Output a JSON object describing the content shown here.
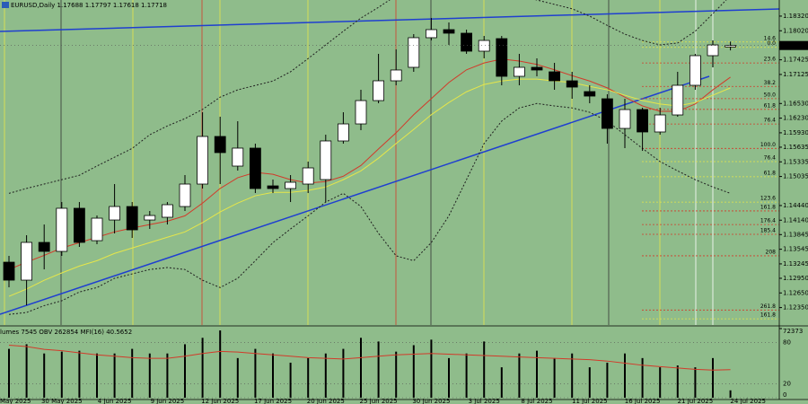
{
  "chart_data": [
    {
      "type": "candlestick",
      "title": "EURUSD,Daily  1.17688 1.17797 1.17618 1.17718",
      "categories": [
        "May 2025",
        null,
        null,
        "30 May 2025",
        null,
        null,
        "4 Jun 2025",
        null,
        null,
        "9 Jun 2025",
        null,
        null,
        "12 Jun 2025",
        null,
        null,
        "17 Jun 2025",
        null,
        null,
        "20 Jun 2025",
        null,
        null,
        "25 Jun 2025",
        null,
        null,
        "30 Jun 2025",
        null,
        null,
        "3 Jul 2025",
        null,
        null,
        "8 Jul 2025",
        null,
        null,
        "11 Jul 2025",
        null,
        null,
        "16 Jul 2025",
        null,
        null,
        "21 Jul 2025",
        null,
        null,
        "24 Jul 2025"
      ],
      "open": [
        1.1328,
        1.12912,
        1.13685,
        1.13501,
        1.14384,
        1.13721,
        1.14144,
        1.1442,
        1.14144,
        1.142,
        1.1442,
        1.1488,
        1.15855,
        1.15248,
        1.15616,
        1.14843,
        1.14788,
        1.1488,
        1.14972,
        1.15763,
        1.16112,
        1.1659,
        1.16995,
        1.17271,
        1.17878,
        1.18043,
        1.1797,
        1.17602,
        1.17859,
        1.17087,
        1.17271,
        1.17179,
        1.16995,
        1.16774,
        1.16627,
        1.1602,
        1.16406,
        1.15947,
        1.16296,
        1.16903,
        1.1751,
        1.17688,
        null
      ],
      "high": [
        1.13409,
        1.13832,
        1.14052,
        1.14512,
        1.14512,
        1.14236,
        1.1488,
        1.14512,
        1.14328,
        1.14512,
        1.15064,
        1.16351,
        1.16259,
        1.16167,
        1.15708,
        1.14972,
        1.15064,
        1.1534,
        1.15891,
        1.16351,
        1.16811,
        1.17547,
        1.17639,
        1.17951,
        1.18282,
        1.1819,
        1.18043,
        1.17914,
        1.17914,
        1.17547,
        1.17455,
        1.17363,
        1.17179,
        1.16903,
        1.16719,
        1.16627,
        1.16443,
        1.16443,
        1.17179,
        1.17547,
        1.17822,
        1.17797,
        null
      ],
      "low": [
        1.12765,
        1.12397,
        1.13133,
        1.13409,
        1.13593,
        1.13648,
        1.13869,
        1.13777,
        1.13961,
        1.14052,
        1.14328,
        1.14788,
        1.1488,
        1.15156,
        1.14696,
        1.14696,
        1.14512,
        1.14696,
        1.14512,
        1.15708,
        1.15983,
        1.16535,
        1.16903,
        1.17179,
        1.17822,
        1.1773,
        1.17547,
        1.17455,
        1.16903,
        1.16903,
        1.17087,
        1.16811,
        1.16627,
        1.16535,
        1.15708,
        1.15616,
        1.1556,
        1.15891,
        1.16259,
        1.16811,
        1.17271,
        1.17618,
        null
      ],
      "close": [
        1.12912,
        1.13685,
        1.13501,
        1.14384,
        1.13685,
        1.14181,
        1.1442,
        1.13942,
        1.14236,
        1.14457,
        1.1488,
        1.15855,
        1.15524,
        1.15616,
        1.14788,
        1.14788,
        1.14917,
        1.15211,
        1.15763,
        1.16112,
        1.1659,
        1.16995,
        1.17216,
        1.17878,
        1.18043,
        1.1797,
        1.17602,
        1.17822,
        1.17087,
        1.17271,
        1.17216,
        1.16995,
        1.16866,
        1.16682,
        1.1602,
        1.16406,
        1.15947,
        1.16296,
        1.16903,
        1.1751,
        1.1773,
        1.17718,
        null
      ],
      "bull_color": "#ffffff",
      "bear_color": "#000000",
      "series": [
        {
          "color": "#d23a2a",
          "dash": "none",
          "values": [
            1.1313,
            1.1328,
            1.1342,
            1.1357,
            1.1368,
            1.1379,
            1.139,
            1.1398,
            1.1405,
            1.1412,
            1.1423,
            1.1449,
            1.1479,
            1.1501,
            1.1512,
            1.1508,
            1.1497,
            1.149,
            1.1493,
            1.1504,
            1.1526,
            1.156,
            1.1593,
            1.163,
            1.1663,
            1.1696,
            1.1722,
            1.1736,
            1.1744,
            1.174,
            1.1733,
            1.1722,
            1.171,
            1.1699,
            1.1685,
            1.1666,
            1.1648,
            1.1637,
            1.1637,
            1.1652,
            1.1681,
            1.1707,
            null
          ]
        },
        {
          "color": "#e6e64a",
          "dash": "none",
          "values": [
            1.1258,
            1.1273,
            1.1291,
            1.1306,
            1.132,
            1.1331,
            1.1346,
            1.1357,
            1.1368,
            1.1379,
            1.139,
            1.1409,
            1.1431,
            1.1449,
            1.1464,
            1.1471,
            1.1471,
            1.1475,
            1.1482,
            1.1497,
            1.1515,
            1.1541,
            1.1571,
            1.16,
            1.163,
            1.1655,
            1.1677,
            1.1692,
            1.1699,
            1.1703,
            1.1703,
            1.1699,
            1.1696,
            1.1688,
            1.1681,
            1.167,
            1.1659,
            1.1652,
            1.1648,
            1.1655,
            1.167,
            1.1685,
            null
          ]
        },
        {
          "color": "#1f1f1f",
          "dash": "2,2",
          "values": [
            1.1469,
            1.1479,
            1.1488,
            1.1497,
            1.1506,
            1.1525,
            1.1543,
            1.1561,
            1.1589,
            1.1607,
            1.1622,
            1.1641,
            1.1666,
            1.1681,
            1.169,
            1.1699,
            1.1718,
            1.1745,
            1.1773,
            1.1801,
            1.1828,
            1.185,
            1.1874,
            1.1883,
            1.1893,
            1.1898,
            1.1893,
            1.1887,
            1.188,
            1.1874,
            1.1865,
            1.1856,
            1.1847,
            1.1832,
            1.1813,
            1.1795,
            1.1782,
            1.1773,
            1.1777,
            1.1801,
            1.1837,
            1.1874,
            null
          ]
        },
        {
          "color": "#1f1f1f",
          "dash": "2,2",
          "values": [
            1.1221,
            1.1225,
            1.1239,
            1.1249,
            1.1267,
            1.1276,
            1.1295,
            1.1304,
            1.1313,
            1.1317,
            1.1313,
            1.1291,
            1.1276,
            1.1295,
            1.1331,
            1.1368,
            1.1396,
            1.1423,
            1.1451,
            1.1469,
            1.1442,
            1.1387,
            1.1341,
            1.1331,
            1.1368,
            1.1423,
            1.1497,
            1.1571,
            1.1617,
            1.1644,
            1.1653,
            1.1648,
            1.1644,
            1.1635,
            1.1617,
            1.1589,
            1.1561,
            1.1534,
            1.1515,
            1.1497,
            1.1482,
            1.1469,
            null
          ]
        }
      ],
      "ylim": [
        1.1203,
        1.1865
      ],
      "yticks": [
        {
          "value": 1.1832,
          "label": "1.18320"
        },
        {
          "value": 1.1802,
          "label": "1.18020"
        },
        {
          "value": 1.17425,
          "label": "1.17425"
        },
        {
          "value": 1.17125,
          "label": "1.17125"
        },
        {
          "value": 1.1653,
          "label": "1.16530"
        },
        {
          "value": 1.1623,
          "label": "1.16230"
        },
        {
          "value": 1.1593,
          "label": "1.15930"
        },
        {
          "value": 1.15635,
          "label": "1.15635"
        },
        {
          "value": 1.15335,
          "label": "1.15335"
        },
        {
          "value": 1.15035,
          "label": "1.15035"
        },
        {
          "value": 1.1444,
          "label": "1.14440"
        },
        {
          "value": 1.1414,
          "label": "1.14140"
        },
        {
          "value": 1.13845,
          "label": "1.13845"
        },
        {
          "value": 1.13545,
          "label": "1.13545"
        },
        {
          "value": 1.13245,
          "label": "1.13245"
        },
        {
          "value": 1.1295,
          "label": "1.12950"
        },
        {
          "value": 1.1265,
          "label": "1.12650"
        },
        {
          "value": 1.1235,
          "label": "1.12350"
        }
      ],
      "last_price": {
        "value": 1.17718,
        "label": "1.17718"
      },
      "levels": [
        {
          "label": "14.6",
          "value": 1.1779,
          "color": "#e6e64a"
        },
        {
          "label": "0.0",
          "value": 1.1768,
          "color": "#e6e64a"
        },
        {
          "label": "23.6",
          "value": 1.1736,
          "color": "#d23a2a"
        },
        {
          "label": "38.2",
          "value": 1.1688,
          "color": "#d23a2a"
        },
        {
          "label": "50.0",
          "value": 1.1663,
          "color": "#d23a2a"
        },
        {
          "label": "61.8",
          "value": 1.1641,
          "color": "#d23a2a"
        },
        {
          "label": "76.4",
          "value": 1.1611,
          "color": "#d23a2a"
        },
        {
          "label": "100.0",
          "value": 1.1561,
          "color": "#d23a2a"
        },
        {
          "label": "76.4",
          "value": 1.1534,
          "color": "#e6e64a"
        },
        {
          "label": "61.8",
          "value": 1.1503,
          "color": "#e6e64a"
        },
        {
          "label": "123.6",
          "value": 1.1451,
          "color": "#e6e64a"
        },
        {
          "label": "161.8",
          "value": 1.1433,
          "color": "#d23a2a"
        },
        {
          "label": "176.4",
          "value": 1.1405,
          "color": "#d23a2a"
        },
        {
          "label": "185.4",
          "value": 1.1385,
          "color": "#d23a2a"
        },
        {
          "label": "208",
          "value": 1.1341,
          "color": "#d23a2a"
        },
        {
          "label": "261.8",
          "value": 1.123,
          "color": "#d23a2a"
        },
        {
          "label": "161.8",
          "value": 1.1212,
          "color": "#e6e64a"
        }
      ]
    },
    {
      "type": "volume",
      "title": "lumes 7545  OBV 262854  MFI(16) 40.5652",
      "values": [
        51145,
        55970,
        46320,
        48250,
        49215,
        46320,
        46320,
        51145,
        46320,
        46320,
        55970,
        62725,
        70445,
        41495,
        51145,
        46320,
        36670,
        41495,
        46320,
        51145,
        62725,
        58865,
        48250,
        55005,
        60795,
        41495,
        46320,
        58865,
        31845,
        46320,
        49215,
        41495,
        46320,
        31845,
        36670,
        46320,
        41495,
        31845,
        33775,
        31845,
        41495,
        7720,
        null
      ],
      "color": "#000000",
      "ylim": [
        0,
        72373
      ],
      "yticks": [
        72373
      ],
      "series": [
        {
          "color": "#d23a2a",
          "axis": "y2",
          "values": [
            76,
            74,
            70,
            68,
            65,
            62,
            60,
            58,
            57,
            57,
            60,
            64,
            67,
            66,
            64,
            62,
            60,
            58,
            57,
            56,
            58,
            60,
            62,
            63,
            64,
            63,
            62,
            61,
            60,
            59,
            58,
            57,
            56,
            55,
            53,
            50,
            47,
            45,
            43,
            41,
            40,
            40.5652,
            null
          ]
        }
      ],
      "y2lim": [
        0,
        100
      ],
      "y2ticks": [
        80,
        20,
        0
      ]
    }
  ]
}
